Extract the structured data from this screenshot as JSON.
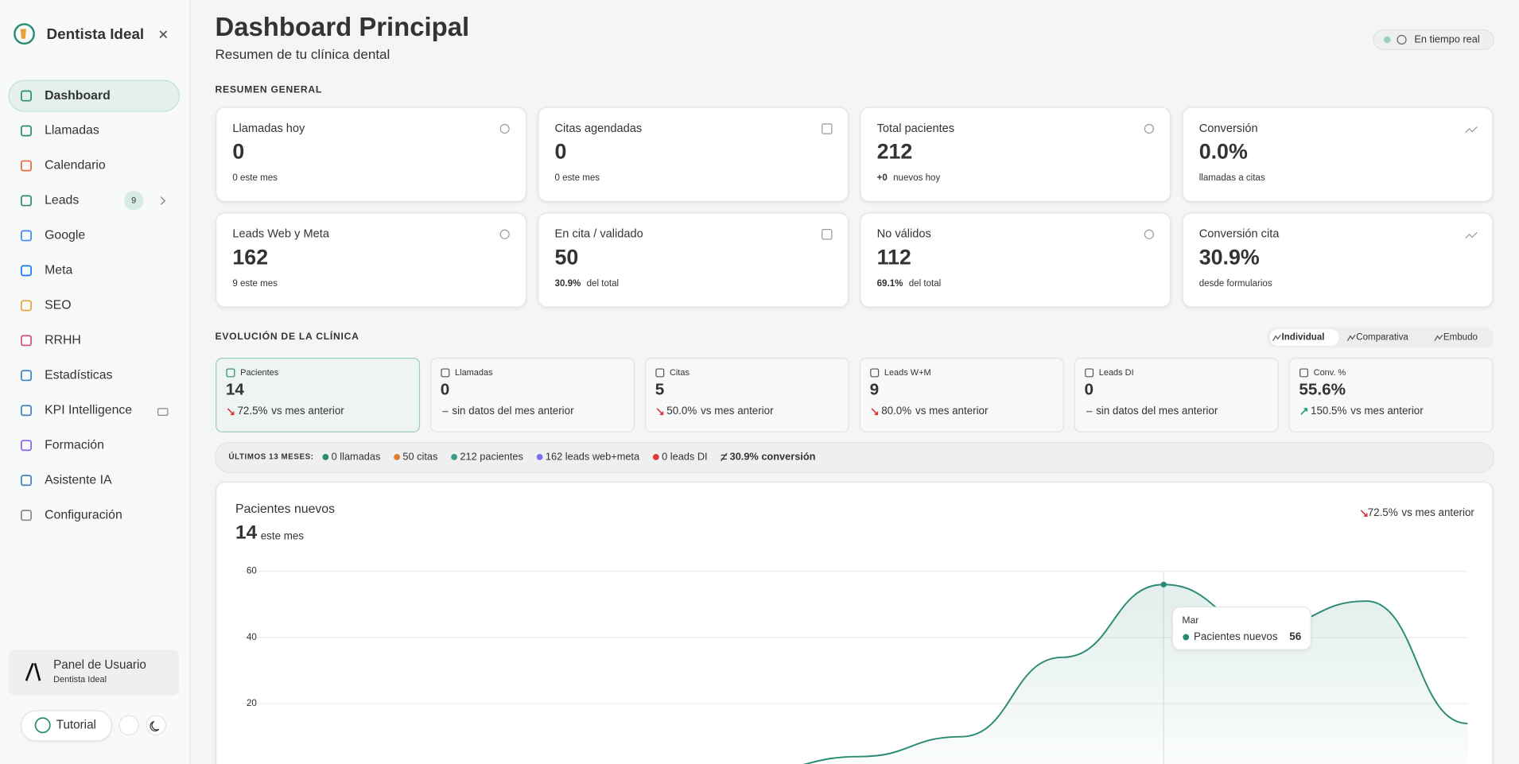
{
  "sidebar": {
    "brand": "Dentista Ideal",
    "active": 0,
    "nav": [
      {
        "label": "Dashboard"
      },
      {
        "label": "Llamadas"
      },
      {
        "label": "Calendario"
      },
      {
        "label": "Leads",
        "badge": "9",
        "expandable": true
      },
      {
        "label": "Google"
      },
      {
        "label": "Meta"
      },
      {
        "label": "SEO"
      },
      {
        "label": "RRHH"
      },
      {
        "label": "Estadísticas"
      },
      {
        "label": "KPI Intelligence",
        "locked": true
      },
      {
        "label": "Formación"
      },
      {
        "label": "Asistente IA"
      },
      {
        "label": "Configuración"
      }
    ],
    "user": {
      "title": "Panel de Usuario",
      "subtitle": "Dentista Ideal"
    },
    "tutorial": "Tutorial"
  },
  "header": {
    "title": "Dashboard Principal",
    "subtitle": "Resumen de tu clínica dental",
    "status": "En tiempo real"
  },
  "summary": {
    "heading": "RESUMEN GENERAL",
    "cards": [
      {
        "label": "Llamadas hoy",
        "value": "0",
        "note": "0 este mes"
      },
      {
        "label": "Citas agendadas",
        "value": "0",
        "note": "0 este mes"
      },
      {
        "label": "Total pacientes",
        "value": "212",
        "delta": "+0",
        "tone": "up",
        "note": "nuevos hoy"
      },
      {
        "label": "Conversión",
        "value": "0.0%",
        "note": "llamadas a citas"
      },
      {
        "label": "Leads Web y Meta",
        "value": "162",
        "note": "9 este mes"
      },
      {
        "label": "En cita / validado",
        "value": "50",
        "delta": "30.9%",
        "tone": "up",
        "note": "del total"
      },
      {
        "label": "No válidos",
        "value": "112",
        "delta": "69.1%",
        "tone": "down",
        "note": "del total"
      },
      {
        "label": "Conversión cita",
        "value": "30.9%",
        "note": "desde formularios"
      }
    ]
  },
  "evolution": {
    "heading": "EVOLUCIÓN DE LA CLÍNICA",
    "tabs": [
      "Individual",
      "Comparativa",
      "Embudo"
    ],
    "active_tab": 0,
    "active_metric": 0,
    "metrics": [
      {
        "label": "Pacientes",
        "value": "14",
        "trend": "down",
        "delta": "72.5%",
        "note": "vs mes anterior"
      },
      {
        "label": "Llamadas",
        "value": "0",
        "trend": "none",
        "note": "sin datos del mes anterior"
      },
      {
        "label": "Citas",
        "value": "5",
        "trend": "down",
        "delta": "50.0%",
        "note": "vs mes anterior"
      },
      {
        "label": "Leads W+M",
        "value": "9",
        "trend": "down",
        "delta": "80.0%",
        "note": "vs mes anterior"
      },
      {
        "label": "Leads DI",
        "value": "0",
        "trend": "none",
        "note": "sin datos del mes anterior"
      },
      {
        "label": "Conv. %",
        "value": "55.6%",
        "trend": "up",
        "delta": "150.5%",
        "note": "vs mes anterior"
      }
    ],
    "totals_label": "ÚLTIMOS 13 MESES:",
    "totals": [
      {
        "text": "0 llamadas",
        "color": "#2a8a74"
      },
      {
        "text": "50 citas",
        "color": "#e07a2c"
      },
      {
        "text": "212 pacientes",
        "color": "#3a9a88"
      },
      {
        "text": "162 leads web+meta",
        "color": "#7b6cf0"
      },
      {
        "text": "0 leads DI",
        "color": "#e03b3b"
      },
      {
        "text": "30.9% conversión",
        "color": null
      }
    ],
    "panel": {
      "title": "Pacientes nuevos",
      "value": "14",
      "unit": "este mes",
      "trend": "down",
      "delta": "72.5%",
      "delta_note": "vs mes anterior"
    }
  },
  "chart_data": {
    "type": "area",
    "categories": [
      null,
      null,
      null,
      null,
      null,
      null,
      null,
      null,
      null,
      "Mar",
      null,
      null,
      null
    ],
    "series": [
      {
        "name": "Pacientes nuevos",
        "color": "#2a8a74",
        "values": [
          0,
          0,
          0,
          0,
          0,
          0,
          4,
          10,
          34,
          56,
          43,
          51,
          14
        ]
      }
    ],
    "ylim": [
      0,
      60
    ],
    "yticks": [
      20,
      40,
      60
    ],
    "grid": true
  }
}
